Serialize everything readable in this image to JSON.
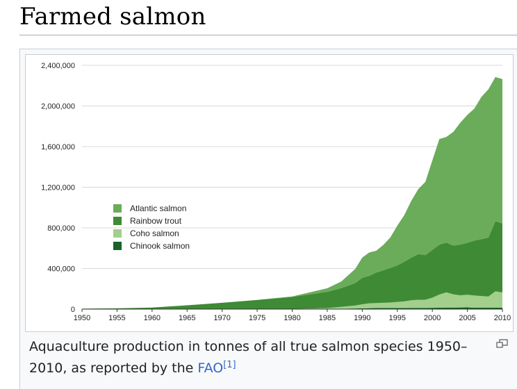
{
  "page": {
    "title": "Farmed salmon",
    "caption_text": "Aquaculture production in tonnes of all true salmon species 1950–2010, as reported by the ",
    "caption_link": "FAO",
    "caption_ref": "[1]",
    "icons": {
      "enlarge": "magnify-clip-icon"
    }
  },
  "chart_data": {
    "type": "area",
    "stacked": true,
    "x": [
      1950,
      1955,
      1960,
      1965,
      1970,
      1975,
      1980,
      1985,
      1987,
      1989,
      1990,
      1991,
      1992,
      1993,
      1994,
      1995,
      1996,
      1997,
      1998,
      1999,
      2000,
      2001,
      2002,
      2003,
      2004,
      2005,
      2006,
      2007,
      2008,
      2009,
      2010
    ],
    "x_ticks": [
      1950,
      1955,
      1960,
      1965,
      1970,
      1975,
      1980,
      1985,
      1990,
      1995,
      2000,
      2005,
      2010
    ],
    "y_ticks": [
      0,
      400000,
      800000,
      1200000,
      1600000,
      2000000,
      2400000
    ],
    "y_tick_labels": [
      "0",
      "400,000",
      "800,000",
      "1,200,000",
      "1,600,000",
      "2,000,000",
      "2,400,000"
    ],
    "xlim": [
      1950,
      2010
    ],
    "ylim": [
      0,
      2400000
    ],
    "grid": true,
    "legend_position": "middle-left",
    "colors": {
      "Atlantic salmon": "#6aac5a",
      "Rainbow trout": "#3f8a35",
      "Coho salmon": "#a2cf8c",
      "Chinook salmon": "#17622a"
    },
    "series": [
      {
        "name": "Atlantic salmon",
        "values": [
          0,
          0,
          0,
          0,
          0,
          1000,
          5000,
          35000,
          65000,
          140000,
          200000,
          230000,
          215000,
          250000,
          300000,
          390000,
          460000,
          560000,
          640000,
          720000,
          880000,
          1040000,
          1040000,
          1120000,
          1200000,
          1260000,
          1300000,
          1400000,
          1460000,
          1420000,
          1420000
        ]
      },
      {
        "name": "Rainbow trout",
        "values": [
          4000,
          8000,
          15000,
          38000,
          62000,
          90000,
          118000,
          160000,
          185000,
          220000,
          260000,
          270000,
          300000,
          320000,
          340000,
          360000,
          390000,
          420000,
          450000,
          440000,
          470000,
          490000,
          490000,
          480000,
          500000,
          510000,
          540000,
          560000,
          580000,
          690000,
          680000
        ]
      },
      {
        "name": "Coho salmon",
        "values": [
          0,
          0,
          0,
          0,
          0,
          0,
          2000,
          8000,
          18000,
          30000,
          40000,
          48000,
          50000,
          52000,
          55000,
          60000,
          65000,
          75000,
          80000,
          80000,
          100000,
          130000,
          150000,
          130000,
          120000,
          125000,
          120000,
          115000,
          110000,
          160000,
          150000
        ]
      },
      {
        "name": "Chinook salmon",
        "values": [
          0,
          0,
          0,
          0,
          0,
          0,
          0,
          2000,
          4000,
          6000,
          8000,
          9000,
          10000,
          10000,
          10000,
          11000,
          11000,
          12000,
          12000,
          12000,
          13000,
          14000,
          15000,
          15000,
          16000,
          17000,
          14000,
          14000,
          14000,
          15000,
          14000
        ]
      }
    ]
  }
}
